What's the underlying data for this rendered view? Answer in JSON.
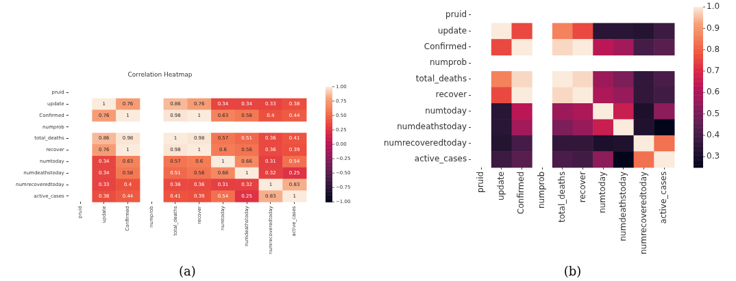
{
  "chart_data": [
    {
      "type": "heatmap",
      "title": "Correlation Heatmap",
      "categories": [
        "pruid",
        "update",
        "Confirmed",
        "numprob",
        "total_deaths",
        "recover",
        "numtoday",
        "numdeathstoday",
        "numrecoveredtoday",
        "active_cases"
      ],
      "y_categories": [
        "pruid",
        "update",
        "Confirmed",
        "numprob",
        "total_deaths",
        "recover",
        "numtoday",
        "numdeathstoday",
        "numrecoveredtoday",
        "active_cases"
      ],
      "cells": [
        [
          null,
          null,
          null,
          null,
          null,
          null,
          null,
          null,
          null,
          null
        ],
        [
          null,
          1,
          0.76,
          null,
          0.86,
          0.76,
          0.34,
          0.34,
          0.33,
          0.38
        ],
        [
          null,
          0.76,
          1,
          null,
          0.98,
          1,
          0.63,
          0.58,
          0.4,
          0.44
        ],
        [
          null,
          null,
          null,
          null,
          null,
          null,
          null,
          null,
          null,
          null
        ],
        [
          null,
          0.86,
          0.98,
          null,
          1,
          0.98,
          0.57,
          0.51,
          0.36,
          0.41
        ],
        [
          null,
          0.76,
          1,
          null,
          0.98,
          1,
          0.6,
          0.56,
          0.36,
          0.39
        ],
        [
          null,
          0.34,
          0.63,
          null,
          0.57,
          0.6,
          1,
          0.66,
          0.31,
          0.54
        ],
        [
          null,
          0.34,
          0.58,
          null,
          0.51,
          0.56,
          0.66,
          1,
          0.32,
          0.25
        ],
        [
          null,
          0.33,
          0.4,
          null,
          0.36,
          0.36,
          0.31,
          0.32,
          1,
          0.83
        ],
        [
          null,
          0.38,
          0.44,
          null,
          0.41,
          0.39,
          0.54,
          0.25,
          0.83,
          1
        ]
      ],
      "clim": [
        -1,
        1
      ],
      "cticks": [
        {
          "value": 1,
          "label": "1.00"
        },
        {
          "value": 0.75,
          "label": "0.75"
        },
        {
          "value": 0.5,
          "label": "0.50"
        },
        {
          "value": 0.25,
          "label": "0.25"
        },
        {
          "value": 0,
          "label": "0.00"
        },
        {
          "value": -0.25,
          "label": "−0.25"
        },
        {
          "value": -0.5,
          "label": "−0.50"
        },
        {
          "value": -0.75,
          "label": "−0.75"
        },
        {
          "value": -1,
          "label": "−1.00"
        }
      ],
      "data_labels": true,
      "annotations": [
        "(a)"
      ]
    },
    {
      "type": "heatmap",
      "categories": [
        "pruid",
        "update",
        "Confirmed",
        "numprob",
        "total_deaths",
        "recover",
        "numtoday",
        "numdeathstoday",
        "numrecoveredtoday",
        "active_cases"
      ],
      "y_categories": [
        "pruid",
        "update",
        "Confirmed",
        "numprob",
        "total_deaths",
        "recover",
        "numtoday",
        "numdeathstoday",
        "numrecoveredtoday",
        "active_cases"
      ],
      "cells": [
        [
          null,
          null,
          null,
          null,
          null,
          null,
          null,
          null,
          null,
          null
        ],
        [
          null,
          1,
          0.76,
          null,
          0.86,
          0.76,
          0.34,
          0.34,
          0.33,
          0.38
        ],
        [
          null,
          0.76,
          1,
          null,
          0.98,
          1,
          0.63,
          0.58,
          0.4,
          0.44
        ],
        [
          null,
          null,
          null,
          null,
          null,
          null,
          null,
          null,
          null,
          null
        ],
        [
          null,
          0.86,
          0.98,
          null,
          1,
          0.98,
          0.57,
          0.51,
          0.36,
          0.41
        ],
        [
          null,
          0.76,
          1,
          null,
          0.98,
          1,
          0.6,
          0.56,
          0.36,
          0.39
        ],
        [
          null,
          0.34,
          0.63,
          null,
          0.57,
          0.6,
          1,
          0.66,
          0.31,
          0.54
        ],
        [
          null,
          0.34,
          0.58,
          null,
          0.51,
          0.56,
          0.66,
          1,
          0.32,
          0.25
        ],
        [
          null,
          0.33,
          0.4,
          null,
          0.36,
          0.36,
          0.31,
          0.32,
          1,
          0.83
        ],
        [
          null,
          0.38,
          0.44,
          null,
          0.41,
          0.39,
          0.54,
          0.25,
          0.83,
          1
        ]
      ],
      "clim": [
        0.25,
        1
      ],
      "cticks": [
        {
          "value": 1,
          "label": "1.0"
        },
        {
          "value": 0.9,
          "label": "0.9"
        },
        {
          "value": 0.8,
          "label": "0.8"
        },
        {
          "value": 0.7,
          "label": "0.7"
        },
        {
          "value": 0.6,
          "label": "0.6"
        },
        {
          "value": 0.5,
          "label": "0.5"
        },
        {
          "value": 0.4,
          "label": "0.4"
        },
        {
          "value": 0.3,
          "label": "0.3"
        }
      ],
      "annotations": [
        "(b)"
      ]
    }
  ]
}
